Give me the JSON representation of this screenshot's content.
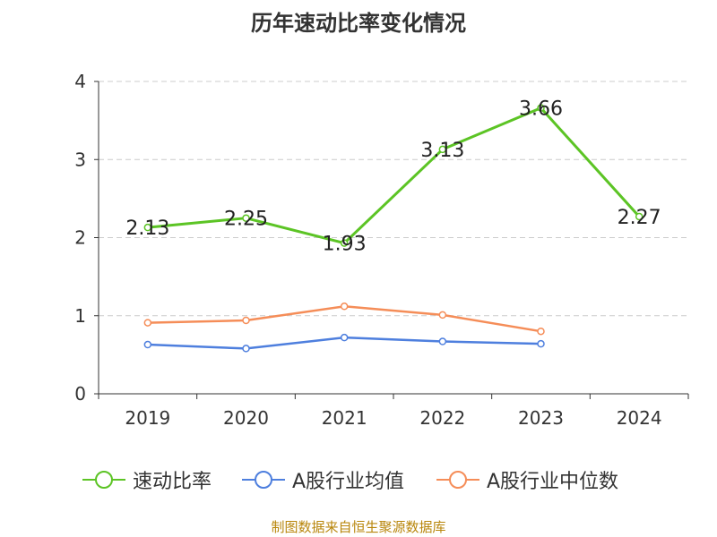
{
  "chart_data": {
    "type": "line",
    "title": "历年速动比率变化情况",
    "categories": [
      "2019",
      "2020",
      "2021",
      "2022",
      "2023",
      "2024"
    ],
    "y_ticks": [
      "0",
      "1",
      "2",
      "3",
      "4"
    ],
    "ylim": [
      0,
      4
    ],
    "grid": true,
    "legend_position": "bottom",
    "series": [
      {
        "name": "速动比率",
        "color": "#5cc425",
        "values": [
          2.13,
          2.25,
          1.93,
          3.13,
          3.66,
          2.27
        ],
        "labels": [
          "2.13",
          "2.25",
          "1.93",
          "3.13",
          "3.66",
          "2.27"
        ]
      },
      {
        "name": "A股行业均值",
        "color": "#4e7fde",
        "values": [
          0.63,
          0.58,
          0.72,
          0.67,
          0.64,
          null
        ]
      },
      {
        "name": "A股行业中位数",
        "color": "#f58d58",
        "values": [
          0.91,
          0.94,
          1.12,
          1.01,
          0.8,
          null
        ]
      }
    ]
  },
  "footer": "制图数据来自恒生聚源数据库"
}
